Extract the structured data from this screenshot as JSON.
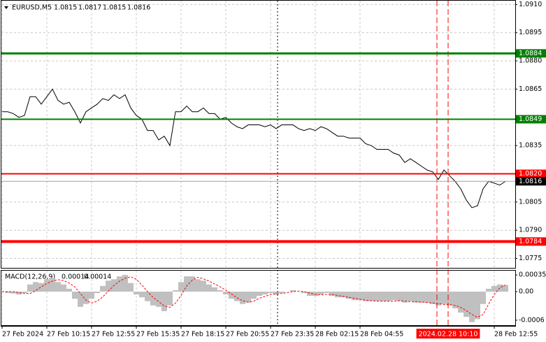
{
  "chart_data": [
    {
      "type": "line",
      "title": "EURUSD,M5",
      "ohlc": [
        1.0815,
        1.0817,
        1.0815,
        1.0816
      ],
      "series": [
        {
          "color": "#000000",
          "values": [
            1.0853,
            1.0853,
            1.0852,
            1.085,
            1.0851,
            1.0861,
            1.0861,
            1.0857,
            1.0861,
            1.0865,
            1.0859,
            1.0857,
            1.0858,
            1.0853,
            1.0847,
            1.0853,
            1.0855,
            1.0857,
            1.086,
            1.0859,
            1.0862,
            1.086,
            1.0862,
            1.0855,
            1.0851,
            1.0849,
            1.0843,
            1.0843,
            1.0838,
            1.084,
            1.0835,
            1.0853,
            1.0853,
            1.0856,
            1.0853,
            1.0853,
            1.0855,
            1.0852,
            1.0852,
            1.0849,
            1.085,
            1.0847,
            1.0845,
            1.0844,
            1.0846,
            1.0846,
            1.0846,
            1.0845,
            1.0846,
            1.0844,
            1.0846,
            1.0846,
            1.0846,
            1.0844,
            1.0843,
            1.0844,
            1.0843,
            1.0845,
            1.0844,
            1.0842,
            1.084,
            1.084,
            1.0839,
            1.0839,
            1.0839,
            1.0836,
            1.0835,
            1.0833,
            1.0833,
            1.0833,
            1.0831,
            1.083,
            1.0826,
            1.0828,
            1.0826,
            1.0824,
            1.0822,
            1.0821,
            1.0817,
            1.0822,
            1.0819,
            1.0816,
            1.0812,
            1.0806,
            1.0802,
            1.0803,
            1.0812,
            1.0816,
            1.0815,
            1.0814,
            1.0816
          ]
        }
      ],
      "xlim": [
        0,
        360
      ],
      "xticks": [
        {
          "value": 0,
          "label": "27 Feb 2024"
        },
        {
          "value": 32,
          "label": "27 Feb 10:15"
        },
        {
          "value": 64,
          "label": "27 Feb 12:55"
        },
        {
          "value": 96,
          "label": "27 Feb 15:35"
        },
        {
          "value": 128,
          "label": "27 Feb 18:15"
        },
        {
          "value": 160,
          "label": "27 Feb 20:55"
        },
        {
          "value": 192,
          "label": "27 Feb 23:35"
        },
        {
          "value": 224,
          "label": "28 Feb 02:15"
        },
        {
          "value": 256,
          "label": "28 Feb 04:55"
        },
        {
          "value": 352,
          "label": "28 Feb 12:55"
        }
      ],
      "cursor": {
        "value": 319,
        "label": "2024.02.28 10:10"
      },
      "ylim": [
        1.077,
        1.0912
      ],
      "yticks": [
        {
          "value": 1.091,
          "label": "1.0910"
        },
        1.0895,
        {
          "value": 1.088,
          "label": "1.0880"
        },
        1.0865,
        1.0835,
        1.0805,
        {
          "value": 1.079,
          "label": "1.0790"
        },
        1.0775
      ],
      "grid": true,
      "levels": [
        {
          "price": 1.0884,
          "color": "#008000",
          "width": 3
        },
        {
          "price": 1.0849,
          "color": "#008000",
          "width": 2
        },
        {
          "price": {
            "value": 1.082,
            "label": "1.0820"
          },
          "color": "#ff0000",
          "width": 2
        },
        {
          "price": 1.0784,
          "color": "#ff0000",
          "width": 4
        }
      ],
      "current_price": 1.0816,
      "vlines": [
        {
          "value": 197,
          "color": "#000000",
          "dash": "2,3"
        },
        {
          "value": 311,
          "color": "#ff0000",
          "dash": "8,4"
        },
        {
          "value": 319,
          "color": "#ff0000",
          "dash": "8,4"
        }
      ]
    },
    {
      "type": "macd",
      "title": "MACD(12,26,9)",
      "readout": [
        0.00014,
        0.00014
      ],
      "histogram": {
        "color": "#c0c0c0",
        "values": [
          0,
          -3e-05,
          -4e-05,
          -6e-05,
          -3e-05,
          0.00015,
          0.0002,
          0.00018,
          0.00026,
          0.00029,
          0.0002,
          0.00015,
          6e-05,
          -0.00015,
          -0.00032,
          -0.00026,
          -0.00015,
          -3e-05,
          0.00012,
          0.00023,
          0.00026,
          0.00032,
          0.00035,
          0.00018,
          -6e-05,
          -0.00012,
          -0.0002,
          -0.00029,
          -0.00032,
          -0.00041,
          -0.00029,
          3e-05,
          0.0002,
          0.00032,
          0.00032,
          0.00026,
          0.00023,
          0.00015,
          9e-05,
          3e-05,
          -6e-05,
          -0.00015,
          -0.0002,
          -0.00026,
          -0.00023,
          -0.00015,
          -9e-05,
          -6e-05,
          -3e-05,
          -6e-05,
          -3e-05,
          0,
          3e-05,
          0,
          -3e-05,
          -9e-05,
          -9e-05,
          -6e-05,
          -3e-05,
          -9e-05,
          -0.00012,
          -0.00012,
          -0.00015,
          -0.00018,
          -0.00018,
          -0.0002,
          -0.0002,
          -0.0002,
          -0.0002,
          -0.0002,
          -0.00018,
          -0.0002,
          -0.00023,
          -0.0002,
          -0.00023,
          -0.00023,
          -0.00023,
          -0.00026,
          -0.00029,
          -0.00026,
          -0.00029,
          -0.00035,
          -0.00044,
          -0.00053,
          -0.00064,
          -0.00058,
          -0.00026,
          6e-05,
          0.00012,
          0.00015,
          0.00014
        ]
      },
      "signal": {
        "color": "#ff0000",
        "values": [
          0,
          0,
          0,
          -2e-05,
          -4e-05,
          -4e-05,
          2e-05,
          0.0001,
          0.00017,
          0.00022,
          0.00025,
          0.00023,
          0.00018,
          0.0001,
          -4e-05,
          -0.00018,
          -0.00024,
          -0.0002,
          -0.00011,
          1e-05,
          0.00013,
          0.00022,
          0.00028,
          0.00031,
          0.00026,
          0.00014,
          0,
          -0.00012,
          -0.00021,
          -0.0003,
          -0.00033,
          -0.00024,
          -8e-05,
          0.00012,
          0.00024,
          0.0003,
          0.00027,
          0.00022,
          0.00016,
          0.0001,
          3e-05,
          -5e-05,
          -0.00013,
          -0.00019,
          -0.00022,
          -0.0002,
          -0.00014,
          -0.0001,
          -6e-05,
          -5e-05,
          -4e-05,
          -2e-05,
          0,
          1e-05,
          0,
          -3e-05,
          -6e-05,
          -7e-05,
          -6e-05,
          -6e-05,
          -8e-05,
          -0.0001,
          -0.00012,
          -0.00014,
          -0.00016,
          -0.00018,
          -0.00019,
          -0.0002,
          -0.0002,
          -0.0002,
          -0.0002,
          -0.00019,
          -0.0002,
          -0.00021,
          -0.00021,
          -0.00022,
          -0.00023,
          -0.00024,
          -0.00025,
          -0.00027,
          -0.00027,
          -0.00029,
          -0.00033,
          -0.0004,
          -0.00048,
          -0.00054,
          -0.00048,
          -0.00026,
          -6e-05,
          8e-05,
          0.00014
        ]
      },
      "ylim": [
        -0.00072,
        0.00044
      ],
      "yticks": [
        0.00035,
        {
          "value": 0,
          "label": "0.00"
        },
        -0.0006
      ]
    }
  ]
}
